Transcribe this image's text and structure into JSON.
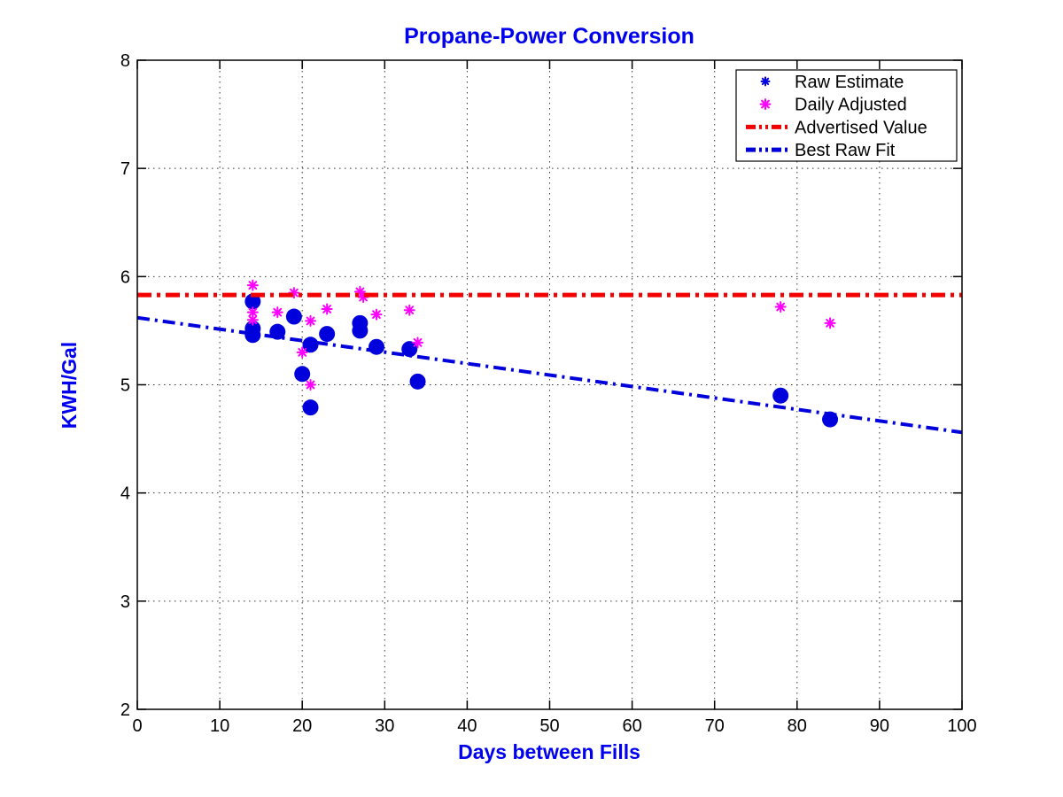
{
  "figure": {
    "background": "#FFFFFF"
  },
  "chart_data": {
    "type": "scatter",
    "title": "Propane-Power Conversion",
    "xlabel": "Days between Fills",
    "ylabel": "KWH/Gal",
    "xlim": [
      0,
      100
    ],
    "ylim": [
      2,
      8
    ],
    "xticks": [
      0,
      10,
      20,
      30,
      40,
      50,
      60,
      70,
      80,
      90,
      100
    ],
    "yticks": [
      2,
      3,
      4,
      5,
      6,
      7,
      8
    ],
    "grid": "dotted",
    "legend_position": "top-right",
    "legend_entries": [
      "Raw Estimate",
      "Daily Adjusted",
      "Advertised Value",
      "Best Raw Fit"
    ],
    "series": [
      {
        "name": "Raw Estimate",
        "plot": "scatter",
        "marker": "dot",
        "color": "#0000DD",
        "points": [
          [
            14,
            5.77
          ],
          [
            14,
            5.52
          ],
          [
            14,
            5.46
          ],
          [
            17,
            5.49
          ],
          [
            19,
            5.63
          ],
          [
            20,
            5.1
          ],
          [
            21,
            5.37
          ],
          [
            21,
            4.79
          ],
          [
            23,
            5.47
          ],
          [
            27,
            5.57
          ],
          [
            27,
            5.5
          ],
          [
            29,
            5.35
          ],
          [
            33,
            5.33
          ],
          [
            34,
            5.03
          ],
          [
            78,
            4.9
          ],
          [
            84,
            4.68
          ]
        ]
      },
      {
        "name": "Daily Adjusted",
        "plot": "scatter",
        "marker": "asterisk",
        "color": "#FF00FF",
        "points": [
          [
            14,
            5.92
          ],
          [
            14,
            5.67
          ],
          [
            14,
            5.6
          ],
          [
            17,
            5.67
          ],
          [
            19,
            5.85
          ],
          [
            20,
            5.3
          ],
          [
            21,
            5.59
          ],
          [
            21,
            5.0
          ],
          [
            23,
            5.7
          ],
          [
            27,
            5.86
          ],
          [
            27.4,
            5.81
          ],
          [
            29,
            5.65
          ],
          [
            33,
            5.69
          ],
          [
            34,
            5.39
          ],
          [
            78,
            5.72
          ],
          [
            84,
            5.57
          ]
        ]
      },
      {
        "name": "Advertised Value",
        "plot": "hline",
        "linestyle": "dash-dot",
        "color": "#F40000",
        "value": 5.83
      },
      {
        "name": "Best Raw Fit",
        "plot": "line",
        "linestyle": "dash-dot",
        "color": "#0000DD",
        "points": [
          [
            0,
            5.62
          ],
          [
            100,
            4.56
          ]
        ]
      }
    ],
    "colors": {
      "title": "#0000EE",
      "axis_labels": "#0000EE",
      "tick_labels": "#000000",
      "grid": "#333333",
      "axis_box": "#000000"
    }
  }
}
